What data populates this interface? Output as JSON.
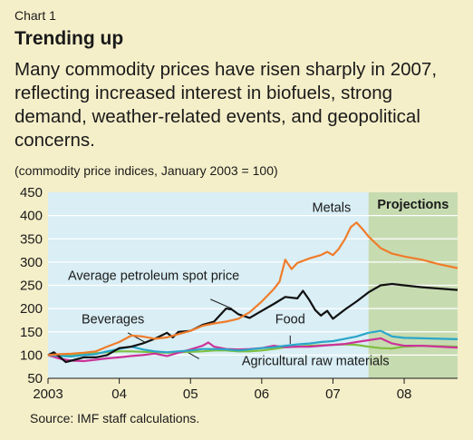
{
  "header": {
    "label": "Chart 1",
    "title": "Trending up",
    "subtitle": "Many commodity prices have risen sharply in 2007, reflecting increased interest in biofuels, strong demand, weather-related events, and geopolitical concerns.",
    "units": "(commodity price indices, January 2003 = 100)"
  },
  "source": "Source: IMF staff calculations.",
  "chart_data": {
    "type": "line",
    "title": "Trending up",
    "ylim": [
      50,
      450
    ],
    "yticks": [
      "50",
      "100",
      "150",
      "200",
      "250",
      "300",
      "350",
      "400",
      "450"
    ],
    "xlim": [
      2003.0,
      2008.75
    ],
    "xticks": [
      {
        "value": 2003,
        "label": "2003"
      },
      {
        "value": 2004,
        "label": "04"
      },
      {
        "value": 2005,
        "label": "05"
      },
      {
        "value": 2006,
        "label": "06"
      },
      {
        "value": 2007,
        "label": "07"
      },
      {
        "value": 2008,
        "label": "08"
      }
    ],
    "projection_start": 2007.5,
    "projection_label": "Projections",
    "grid": true,
    "colors": {
      "plot_bg": "#d9eef5",
      "projection_bg": "#c7dbb1",
      "grid": "#ffffff",
      "page_bg": "#f5efc9"
    },
    "series": [
      {
        "name": "Metals",
        "color": "#f07c2a",
        "points": [
          [
            2003.0,
            100
          ],
          [
            2003.17,
            102
          ],
          [
            2003.33,
            103
          ],
          [
            2003.5,
            105
          ],
          [
            2003.67,
            108
          ],
          [
            2003.83,
            118
          ],
          [
            2004.0,
            128
          ],
          [
            2004.17,
            142
          ],
          [
            2004.33,
            140
          ],
          [
            2004.5,
            135
          ],
          [
            2004.67,
            138
          ],
          [
            2004.83,
            145
          ],
          [
            2005.0,
            152
          ],
          [
            2005.17,
            163
          ],
          [
            2005.33,
            168
          ],
          [
            2005.5,
            172
          ],
          [
            2005.67,
            178
          ],
          [
            2005.83,
            192
          ],
          [
            2006.0,
            215
          ],
          [
            2006.17,
            242
          ],
          [
            2006.25,
            258
          ],
          [
            2006.33,
            305
          ],
          [
            2006.42,
            285
          ],
          [
            2006.5,
            298
          ],
          [
            2006.67,
            308
          ],
          [
            2006.83,
            315
          ],
          [
            2006.92,
            322
          ],
          [
            2007.0,
            315
          ],
          [
            2007.08,
            328
          ],
          [
            2007.17,
            350
          ],
          [
            2007.25,
            375
          ],
          [
            2007.33,
            385
          ],
          [
            2007.42,
            370
          ],
          [
            2007.5,
            355
          ],
          [
            2007.67,
            330
          ],
          [
            2007.83,
            318
          ],
          [
            2008.0,
            312
          ],
          [
            2008.25,
            305
          ],
          [
            2008.5,
            295
          ],
          [
            2008.75,
            287
          ]
        ]
      },
      {
        "name": "Average petroleum spot price",
        "color": "#111111",
        "points": [
          [
            2003.0,
            100
          ],
          [
            2003.08,
            106
          ],
          [
            2003.17,
            95
          ],
          [
            2003.25,
            85
          ],
          [
            2003.33,
            88
          ],
          [
            2003.5,
            95
          ],
          [
            2003.67,
            95
          ],
          [
            2003.83,
            100
          ],
          [
            2004.0,
            115
          ],
          [
            2004.17,
            118
          ],
          [
            2004.33,
            125
          ],
          [
            2004.5,
            135
          ],
          [
            2004.67,
            148
          ],
          [
            2004.75,
            138
          ],
          [
            2004.83,
            150
          ],
          [
            2005.0,
            152
          ],
          [
            2005.17,
            165
          ],
          [
            2005.33,
            172
          ],
          [
            2005.5,
            200
          ],
          [
            2005.58,
            198
          ],
          [
            2005.67,
            188
          ],
          [
            2005.83,
            180
          ],
          [
            2006.0,
            195
          ],
          [
            2006.17,
            210
          ],
          [
            2006.33,
            225
          ],
          [
            2006.5,
            222
          ],
          [
            2006.58,
            238
          ],
          [
            2006.67,
            218
          ],
          [
            2006.75,
            197
          ],
          [
            2006.83,
            185
          ],
          [
            2006.92,
            195
          ],
          [
            2007.0,
            178
          ],
          [
            2007.17,
            198
          ],
          [
            2007.33,
            215
          ],
          [
            2007.5,
            235
          ],
          [
            2007.67,
            250
          ],
          [
            2007.83,
            253
          ],
          [
            2008.0,
            250
          ],
          [
            2008.25,
            246
          ],
          [
            2008.5,
            243
          ],
          [
            2008.75,
            240
          ]
        ]
      },
      {
        "name": "Food",
        "color": "#2aa6c9",
        "points": [
          [
            2003.0,
            100
          ],
          [
            2003.17,
            98
          ],
          [
            2003.33,
            97
          ],
          [
            2003.5,
            100
          ],
          [
            2003.67,
            102
          ],
          [
            2003.83,
            108
          ],
          [
            2004.0,
            113
          ],
          [
            2004.17,
            118
          ],
          [
            2004.33,
            112
          ],
          [
            2004.5,
            108
          ],
          [
            2004.67,
            106
          ],
          [
            2004.83,
            108
          ],
          [
            2005.0,
            110
          ],
          [
            2005.17,
            113
          ],
          [
            2005.33,
            113
          ],
          [
            2005.5,
            112
          ],
          [
            2005.67,
            110
          ],
          [
            2005.83,
            112
          ],
          [
            2006.0,
            115
          ],
          [
            2006.17,
            117
          ],
          [
            2006.33,
            120
          ],
          [
            2006.5,
            123
          ],
          [
            2006.67,
            125
          ],
          [
            2006.83,
            128
          ],
          [
            2007.0,
            130
          ],
          [
            2007.17,
            135
          ],
          [
            2007.33,
            140
          ],
          [
            2007.5,
            148
          ],
          [
            2007.67,
            152
          ],
          [
            2007.83,
            140
          ],
          [
            2008.0,
            137
          ],
          [
            2008.25,
            136
          ],
          [
            2008.5,
            135
          ],
          [
            2008.75,
            134
          ]
        ]
      },
      {
        "name": "Beverages",
        "color": "#cc3399",
        "points": [
          [
            2003.0,
            100
          ],
          [
            2003.17,
            92
          ],
          [
            2003.33,
            88
          ],
          [
            2003.5,
            87
          ],
          [
            2003.67,
            90
          ],
          [
            2003.83,
            93
          ],
          [
            2004.0,
            95
          ],
          [
            2004.17,
            98
          ],
          [
            2004.33,
            100
          ],
          [
            2004.5,
            103
          ],
          [
            2004.67,
            98
          ],
          [
            2004.83,
            105
          ],
          [
            2005.0,
            112
          ],
          [
            2005.17,
            120
          ],
          [
            2005.25,
            127
          ],
          [
            2005.33,
            118
          ],
          [
            2005.5,
            113
          ],
          [
            2005.67,
            112
          ],
          [
            2005.83,
            113
          ],
          [
            2006.0,
            115
          ],
          [
            2006.17,
            120
          ],
          [
            2006.33,
            117
          ],
          [
            2006.5,
            118
          ],
          [
            2006.67,
            118
          ],
          [
            2006.83,
            120
          ],
          [
            2007.0,
            122
          ],
          [
            2007.17,
            124
          ],
          [
            2007.33,
            128
          ],
          [
            2007.5,
            132
          ],
          [
            2007.67,
            136
          ],
          [
            2007.83,
            125
          ],
          [
            2008.0,
            120
          ],
          [
            2008.25,
            120
          ],
          [
            2008.5,
            118
          ],
          [
            2008.75,
            116
          ]
        ]
      },
      {
        "name": "Agricultural raw materials",
        "color": "#7fbf3f",
        "points": [
          [
            2003.0,
            100
          ],
          [
            2003.17,
            100
          ],
          [
            2003.33,
            99
          ],
          [
            2003.5,
            102
          ],
          [
            2003.67,
            104
          ],
          [
            2003.83,
            106
          ],
          [
            2004.0,
            108
          ],
          [
            2004.17,
            108
          ],
          [
            2004.33,
            107
          ],
          [
            2004.5,
            106
          ],
          [
            2004.67,
            105
          ],
          [
            2004.83,
            106
          ],
          [
            2005.0,
            107
          ],
          [
            2005.17,
            108
          ],
          [
            2005.33,
            110
          ],
          [
            2005.5,
            110
          ],
          [
            2005.67,
            108
          ],
          [
            2005.83,
            108
          ],
          [
            2006.0,
            110
          ],
          [
            2006.17,
            113
          ],
          [
            2006.33,
            117
          ],
          [
            2006.5,
            118
          ],
          [
            2006.67,
            120
          ],
          [
            2006.83,
            121
          ],
          [
            2007.0,
            122
          ],
          [
            2007.17,
            123
          ],
          [
            2007.33,
            122
          ],
          [
            2007.5,
            118
          ],
          [
            2007.67,
            115
          ],
          [
            2007.83,
            114
          ],
          [
            2008.0,
            118
          ],
          [
            2008.25,
            120
          ],
          [
            2008.5,
            119
          ],
          [
            2008.75,
            118
          ]
        ]
      }
    ],
    "annotations": [
      {
        "text": "Metals",
        "x": 2006.98,
        "y": 408,
        "anchor": "middle"
      },
      {
        "text": "Average petroleum spot price",
        "x": 2003.28,
        "y": 262,
        "anchor": "start"
      },
      {
        "text": "Food",
        "x": 2006.4,
        "y": 168,
        "anchor": "middle"
      },
      {
        "text": "Beverages",
        "x": 2003.47,
        "y": 168,
        "anchor": "start"
      },
      {
        "text": "Agricultural raw materials",
        "x": 2005.72,
        "y": 78,
        "anchor": "start"
      }
    ],
    "leaders": [
      {
        "from": [
          2005.28,
          220
        ],
        "to": [
          2005.58,
          200
        ]
      },
      {
        "from": [
          2006.4,
          142
        ],
        "to": [
          2006.4,
          124
        ]
      },
      {
        "from": [
          2004.12,
          148
        ],
        "to": [
          2004.38,
          126
        ]
      },
      {
        "from": [
          2005.12,
          92
        ],
        "to": [
          2004.95,
          107
        ]
      }
    ]
  }
}
